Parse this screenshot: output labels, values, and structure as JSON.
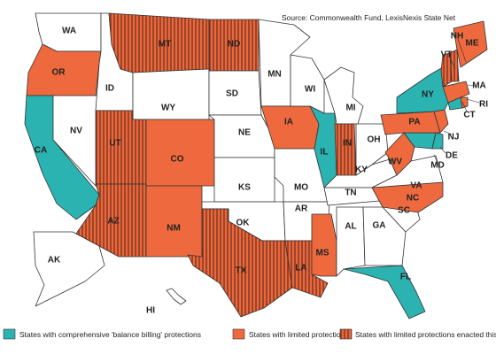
{
  "source_text": "Source: Commonwealth Fund, LexisNexis State Net",
  "colors": {
    "comprehensive": "#2bb3b1",
    "limited": "#ee6a3e",
    "limited_hatch_bg": "#e8693e",
    "hatch_line": "#7a2e1a",
    "none": "#ffffff",
    "border": "#333333"
  },
  "legend": [
    {
      "key": "comprehensive",
      "label": "States with comprehensive 'balance billing' protections"
    },
    {
      "key": "limited",
      "label": "States with limited protections"
    },
    {
      "key": "new",
      "label": "States with limited protections enacted this session"
    }
  ],
  "states": [
    {
      "abbr": "WA",
      "category": "none"
    },
    {
      "abbr": "OR",
      "category": "limited"
    },
    {
      "abbr": "CA",
      "category": "comprehensive"
    },
    {
      "abbr": "NV",
      "category": "none"
    },
    {
      "abbr": "ID",
      "category": "none"
    },
    {
      "abbr": "MT",
      "category": "new"
    },
    {
      "abbr": "WY",
      "category": "none"
    },
    {
      "abbr": "UT",
      "category": "new"
    },
    {
      "abbr": "AZ",
      "category": "new"
    },
    {
      "abbr": "CO",
      "category": "limited"
    },
    {
      "abbr": "NM",
      "category": "limited"
    },
    {
      "abbr": "ND",
      "category": "new"
    },
    {
      "abbr": "SD",
      "category": "none"
    },
    {
      "abbr": "NE",
      "category": "none"
    },
    {
      "abbr": "KS",
      "category": "none"
    },
    {
      "abbr": "OK",
      "category": "none"
    },
    {
      "abbr": "TX",
      "category": "new"
    },
    {
      "abbr": "MN",
      "category": "none"
    },
    {
      "abbr": "IA",
      "category": "limited"
    },
    {
      "abbr": "MO",
      "category": "none"
    },
    {
      "abbr": "AR",
      "category": "none"
    },
    {
      "abbr": "LA",
      "category": "new"
    },
    {
      "abbr": "WI",
      "category": "none"
    },
    {
      "abbr": "IL",
      "category": "comprehensive"
    },
    {
      "abbr": "MS",
      "category": "limited"
    },
    {
      "abbr": "MI",
      "category": "none"
    },
    {
      "abbr": "IN",
      "category": "new"
    },
    {
      "abbr": "KY",
      "category": "none"
    },
    {
      "abbr": "TN",
      "category": "none"
    },
    {
      "abbr": "AL",
      "category": "none"
    },
    {
      "abbr": "OH",
      "category": "none"
    },
    {
      "abbr": "GA",
      "category": "none"
    },
    {
      "abbr": "FL",
      "category": "comprehensive"
    },
    {
      "abbr": "SC",
      "category": "none"
    },
    {
      "abbr": "NC",
      "category": "limited"
    },
    {
      "abbr": "VA",
      "category": "none"
    },
    {
      "abbr": "WV",
      "category": "limited"
    },
    {
      "abbr": "MD",
      "category": "comprehensive"
    },
    {
      "abbr": "DE",
      "category": "comprehensive"
    },
    {
      "abbr": "PA",
      "category": "limited"
    },
    {
      "abbr": "NJ",
      "category": "limited"
    },
    {
      "abbr": "NY",
      "category": "comprehensive"
    },
    {
      "abbr": "CT",
      "category": "comprehensive"
    },
    {
      "abbr": "RI",
      "category": "limited"
    },
    {
      "abbr": "MA",
      "category": "limited"
    },
    {
      "abbr": "VT",
      "category": "new"
    },
    {
      "abbr": "NH",
      "category": "new"
    },
    {
      "abbr": "ME",
      "category": "limited"
    },
    {
      "abbr": "AK",
      "category": "none"
    },
    {
      "abbr": "HI",
      "category": "none"
    }
  ]
}
